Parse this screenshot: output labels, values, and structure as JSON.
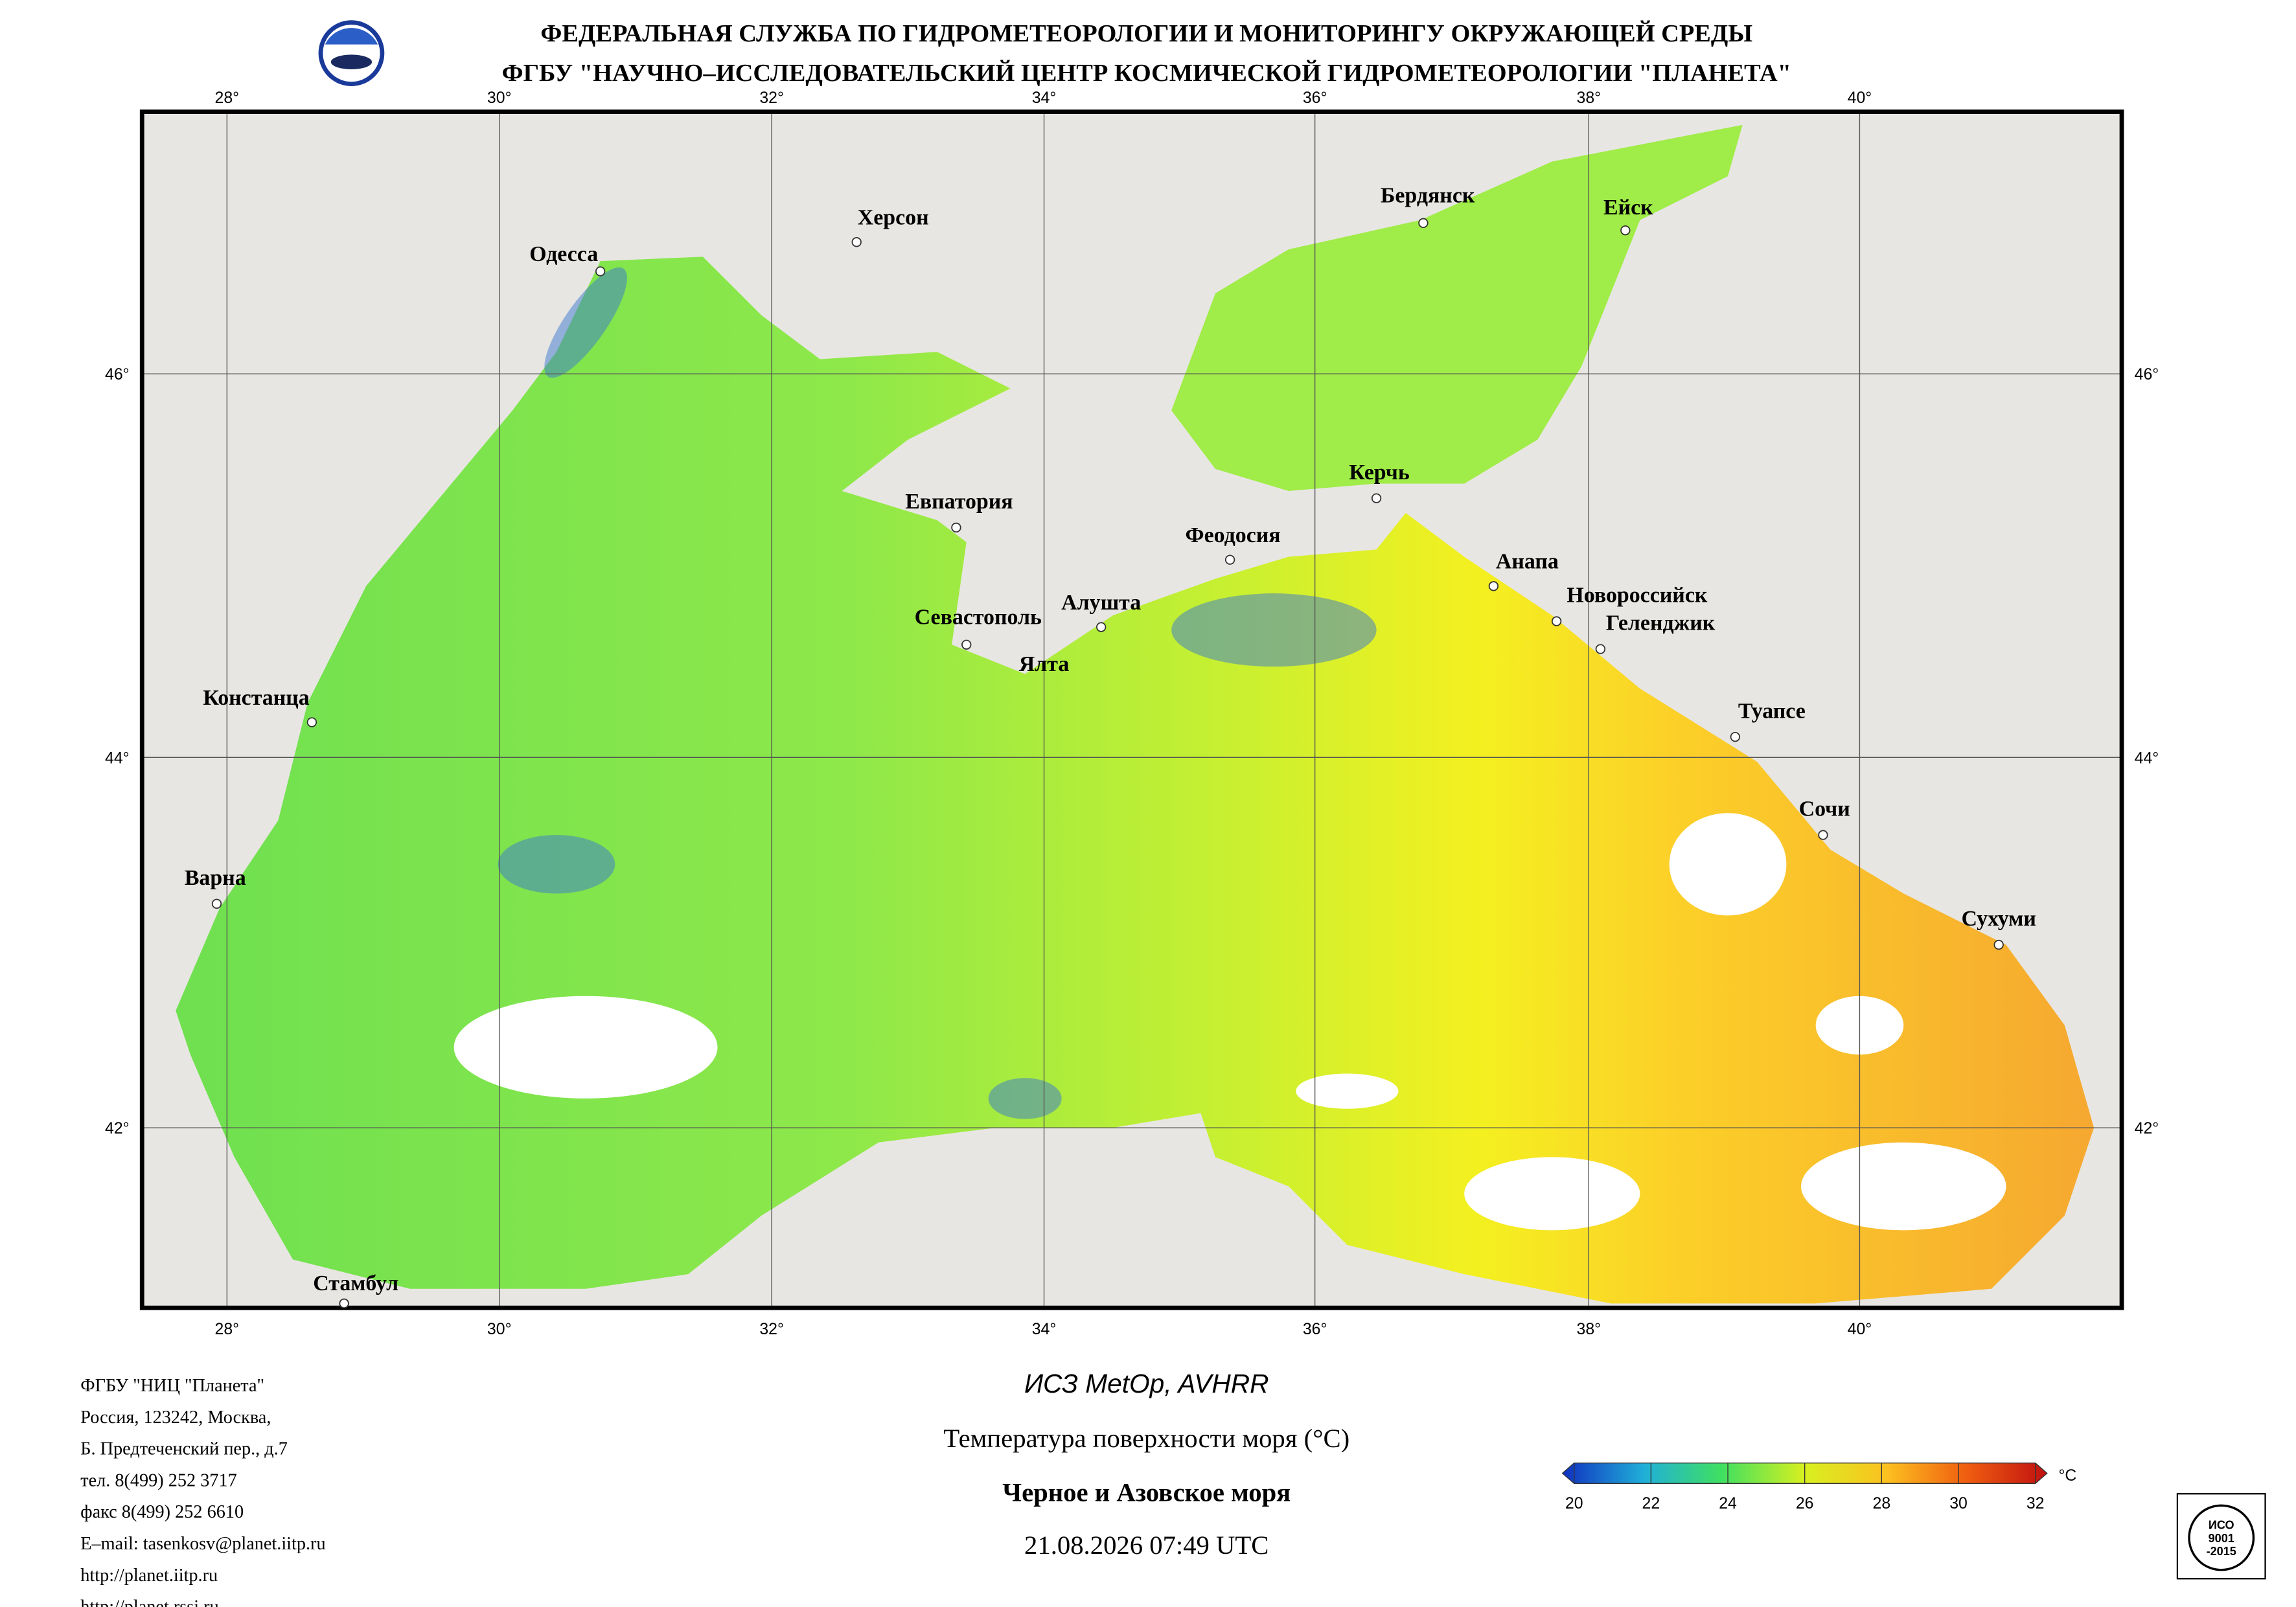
{
  "header": {
    "line1": "ФЕДЕРАЛЬНАЯ СЛУЖБА ПО ГИДРОМЕТЕОРОЛОГИИ И МОНИТОРИНГУ ОКРУЖАЮЩЕЙ СРЕДЫ",
    "line2": "ФГБУ \"НАУЧНО–ИССЛЕДОВАТЕЛЬСКИЙ ЦЕНТР КОСМИЧЕСКОЙ ГИДРОМЕТЕОРОЛОГИИ \"ПЛАНЕТА\""
  },
  "map": {
    "lon_labels": [
      "28°",
      "30°",
      "32°",
      "34°",
      "36°",
      "38°",
      "40°"
    ],
    "lat_labels": [
      "46°",
      "44°",
      "42°"
    ],
    "cities": [
      "Одесса",
      "Херсон",
      "Бердянск",
      "Ейск",
      "Евпатория",
      "Керчь",
      "Феодосия",
      "Анапа",
      "Новороссийск",
      "Геленджик",
      "Севастополь",
      "Алушта",
      "Ялта",
      "Туапсе",
      "Сочи",
      "Сухуми",
      "Констанца",
      "Варна",
      "Стамбул"
    ]
  },
  "footer": {
    "contacts": [
      "ФГБУ \"НИЦ \"Планета\"",
      "Россия, 123242, Москва,",
      "Б. Предтеченский пер., д.7",
      "тел. 8(499) 252 3717",
      "факс 8(499) 252 6610",
      "E–mail: tasenkosv@planet.iitp.ru",
      "http://planet.iitp.ru",
      "http://planet.rssi.ru"
    ],
    "caption": {
      "satellite": "ИСЗ MetOp, AVHRR",
      "parameter": "Температура поверхности моря (°C)",
      "region": "Черное и Азовское моря",
      "datetime": "21.08.2026 07:49 UTC"
    }
  },
  "colorbar": {
    "ticks": [
      20,
      22,
      24,
      26,
      28,
      30,
      32
    ],
    "unit": "°C"
  },
  "certificate": {
    "lines": [
      "ИСО",
      "9001",
      "-2015"
    ]
  }
}
